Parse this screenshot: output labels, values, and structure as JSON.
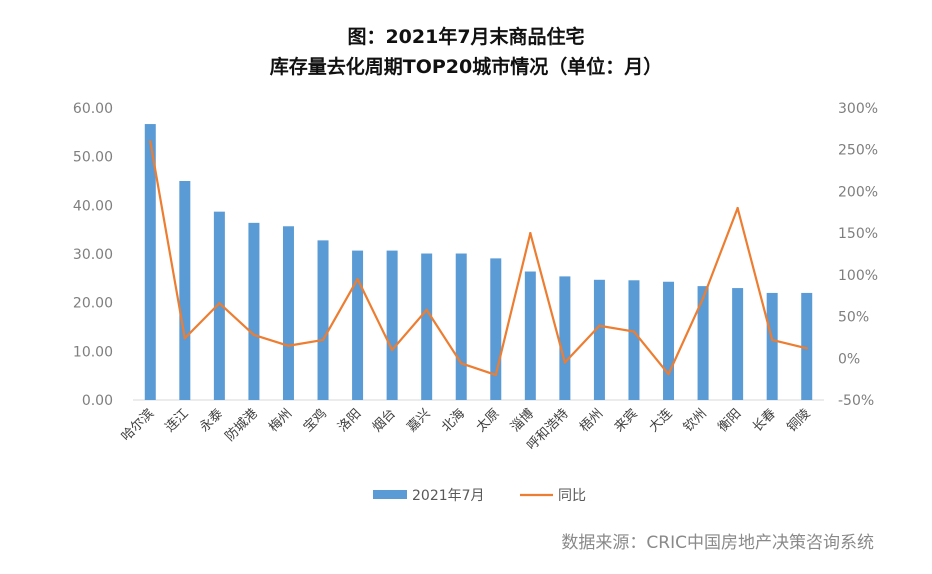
{
  "title_line1": "图：2021年7月末商品住宅",
  "title_line2": "库存量去化周期TOP20城市情况（单位：月）",
  "source": "数据来源：CRIC中国房地产决策咨询系统",
  "colors": {
    "bar": "#5b9bd5",
    "line": "#ed7d31",
    "axis": "#d9d9d9"
  },
  "chart_data": {
    "type": "bar",
    "categories": [
      "哈尔滨",
      "连江",
      "永泰",
      "防城港",
      "梅州",
      "宝鸡",
      "洛阳",
      "烟台",
      "嘉兴",
      "北海",
      "太原",
      "淄博",
      "呼和浩特",
      "梧州",
      "来宾",
      "大连",
      "钦州",
      "衡阳",
      "长春",
      "铜陵"
    ],
    "series": [
      {
        "name": "2021年7月",
        "type": "bar",
        "axis": "left",
        "values": [
          56.7,
          45.0,
          38.7,
          36.4,
          35.7,
          32.8,
          30.7,
          30.7,
          30.1,
          30.1,
          29.1,
          26.4,
          25.4,
          24.7,
          24.6,
          24.3,
          23.4,
          23.0,
          22.0,
          22.0
        ]
      },
      {
        "name": "同比",
        "type": "line",
        "axis": "right",
        "unit": "%",
        "values": [
          260,
          24,
          66,
          28,
          15,
          22,
          95,
          10,
          58,
          -6,
          -20,
          150,
          -5,
          39,
          32,
          -19,
          72,
          180,
          22,
          12
        ]
      }
    ],
    "y_left": {
      "min": 0,
      "max": 60,
      "step": 10,
      "ticks": [
        "0.00",
        "10.00",
        "20.00",
        "30.00",
        "40.00",
        "50.00",
        "60.00"
      ]
    },
    "y_right": {
      "min": -50,
      "max": 300,
      "step": 50,
      "ticks": [
        "-50%",
        "0%",
        "50%",
        "100%",
        "150%",
        "200%",
        "250%",
        "300%"
      ]
    },
    "legend_position": "bottom",
    "grid": false
  }
}
